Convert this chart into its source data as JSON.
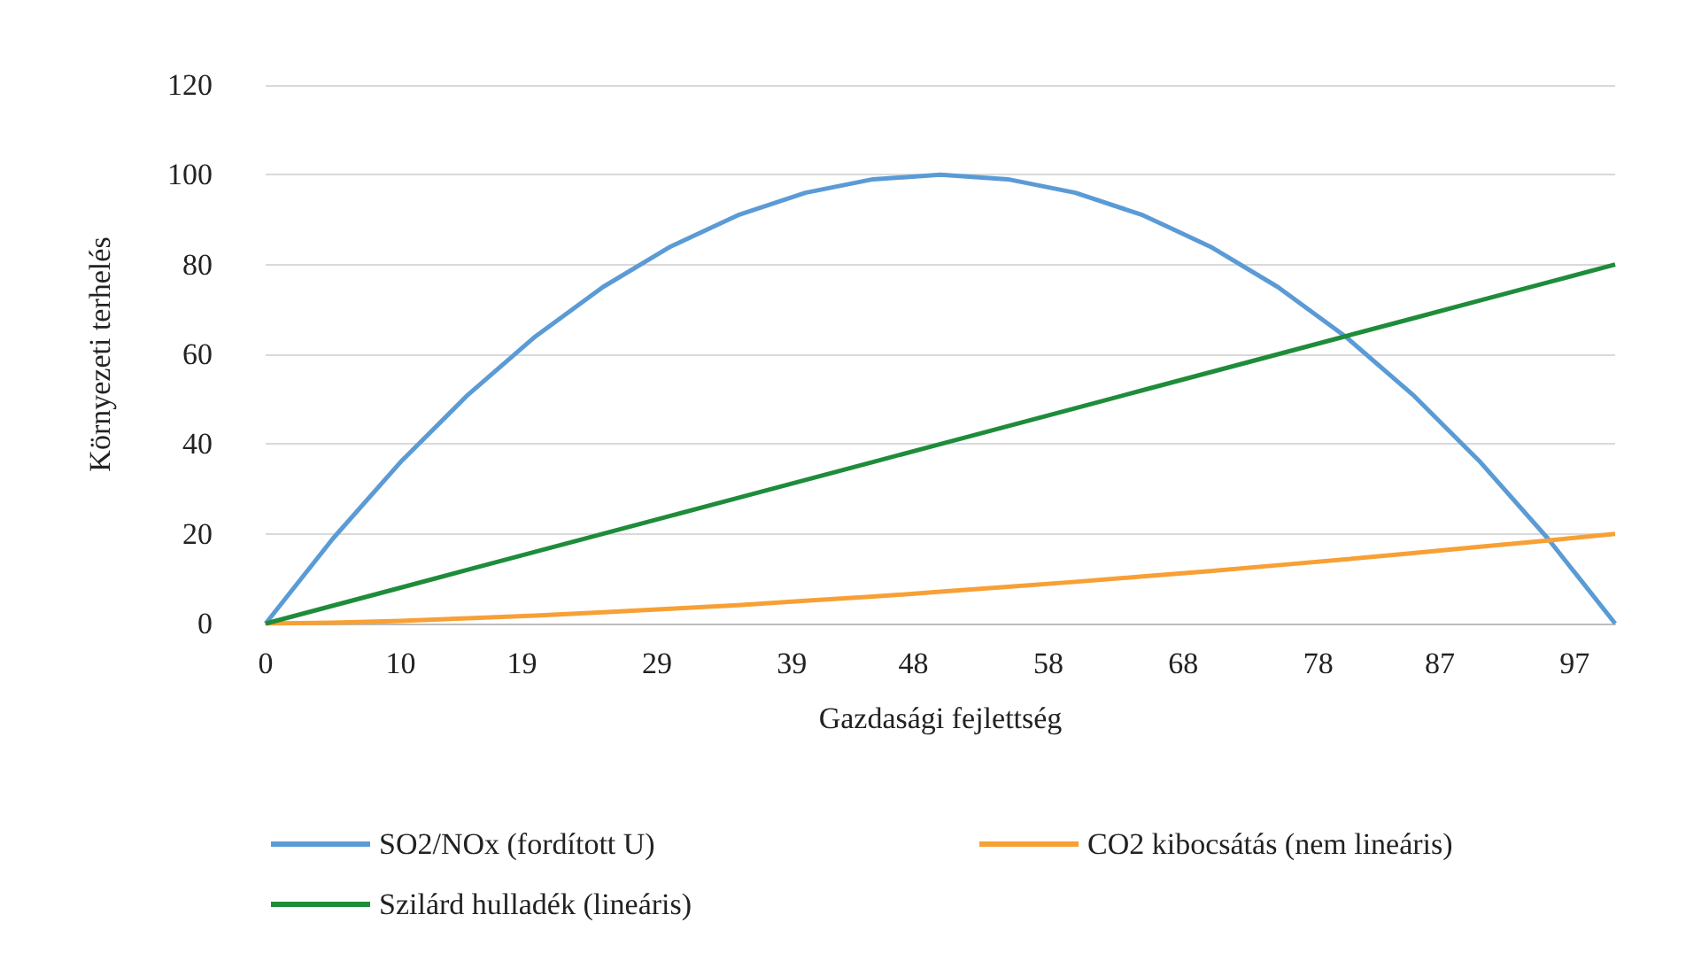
{
  "chart_data": {
    "type": "line",
    "xlabel": "Gazdasági fejlettség",
    "ylabel": "Környezeti terhelés",
    "x": [
      0,
      5,
      10,
      15,
      20,
      25,
      30,
      35,
      40,
      45,
      50,
      55,
      60,
      65,
      70,
      75,
      80,
      85,
      90,
      95,
      100
    ],
    "series": [
      {
        "name": "SO2/NOx (fordított U)",
        "color": "#5b9bd5",
        "values": [
          0,
          19,
          36,
          51,
          64,
          75,
          84,
          91,
          96,
          99,
          100,
          99,
          96,
          91,
          84,
          75,
          64,
          51,
          36,
          19,
          0
        ]
      },
      {
        "name": "CO2 kibocsátás (nem lineáris)",
        "color": "#f7a035",
        "values": [
          0,
          0.2,
          0.6,
          1.2,
          1.8,
          2.5,
          3.3,
          4.1,
          5.1,
          6,
          7.1,
          8.2,
          9.3,
          10.5,
          11.7,
          13,
          14.3,
          15.7,
          17.1,
          18.5,
          20
        ]
      },
      {
        "name": "Szilárd hulladék (lineáris)",
        "color": "#1e8c3a",
        "values": [
          0,
          4,
          8,
          12,
          16,
          20,
          24,
          28,
          32,
          36,
          40,
          44,
          48,
          52,
          56,
          60,
          64,
          68,
          72,
          76,
          80
        ]
      }
    ],
    "xlim": [
      0,
      100
    ],
    "xticks": [
      0,
      10,
      19,
      29,
      39,
      48,
      58,
      68,
      78,
      87,
      97
    ],
    "ylim": [
      0,
      120
    ],
    "yticks": [
      0,
      20,
      40,
      60,
      80,
      100,
      120
    ],
    "grid": "y",
    "legend": "bottom",
    "marker": "none",
    "line_style": "solid"
  }
}
